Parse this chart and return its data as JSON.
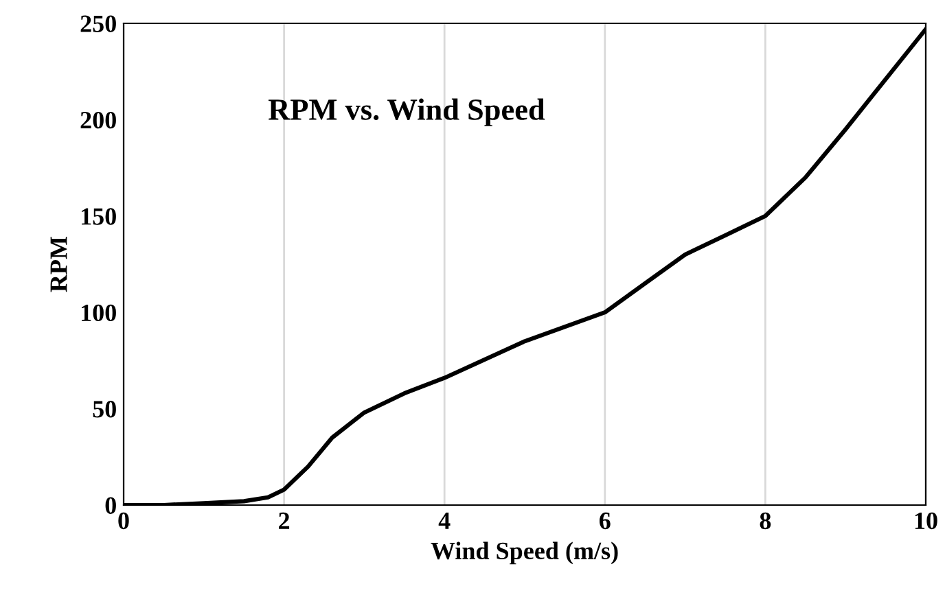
{
  "chart_data": {
    "type": "line",
    "title": "RPM vs. Wind Speed",
    "xlabel": "Wind Speed (m/s)",
    "ylabel": "RPM",
    "x": [
      0,
      0.5,
      1,
      1.5,
      1.8,
      2,
      2.3,
      2.6,
      3,
      3.5,
      4,
      5,
      6,
      6.5,
      7,
      7.5,
      8,
      8.5,
      9,
      10
    ],
    "series": [
      {
        "color": "#000000",
        "values": [
          0,
          0,
          1,
          2,
          4,
          8,
          20,
          35,
          48,
          58,
          66,
          85,
          100,
          115,
          130,
          140,
          150,
          170,
          195,
          247
        ]
      }
    ],
    "xlim": [
      0,
      10
    ],
    "ylim": [
      0,
      250
    ],
    "xticks": [
      0,
      2,
      4,
      6,
      8,
      10
    ],
    "yticks": [
      0,
      50,
      100,
      150,
      200,
      250
    ],
    "grid": "x",
    "marker": "none",
    "line_style": "solid",
    "legend": false
  }
}
